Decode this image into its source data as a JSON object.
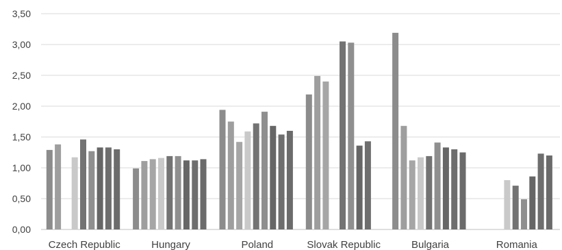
{
  "chart_data": {
    "type": "bar",
    "categories": [
      "Czech Republic",
      "Hungary",
      "Poland",
      "Slovak Republic",
      "Bulgaria",
      "Romania"
    ],
    "series": [
      {
        "values": [
          1.29,
          0.99,
          1.94,
          2.19,
          3.19,
          null
        ]
      },
      {
        "values": [
          1.38,
          1.11,
          1.75,
          2.49,
          1.68,
          null
        ]
      },
      {
        "values": [
          null,
          1.14,
          1.42,
          2.4,
          1.12,
          null
        ]
      },
      {
        "values": [
          1.17,
          1.16,
          1.59,
          null,
          1.17,
          0.8
        ]
      },
      {
        "values": [
          1.46,
          1.19,
          1.72,
          3.05,
          1.19,
          0.71
        ]
      },
      {
        "values": [
          1.27,
          1.19,
          1.91,
          3.03,
          1.41,
          0.49
        ]
      },
      {
        "values": [
          1.33,
          1.12,
          1.68,
          1.36,
          1.33,
          0.86
        ]
      },
      {
        "values": [
          1.33,
          1.12,
          1.54,
          1.43,
          1.3,
          1.23
        ]
      },
      {
        "values": [
          1.3,
          1.14,
          1.6,
          null,
          1.25,
          1.2
        ]
      }
    ],
    "series_colors": [
      "#8c8c8c",
      "#9e9e9e",
      "#a6a6a6",
      "#c9c9c9",
      "#737373",
      "#8f8f8f",
      "#666666",
      "#6e6e6e",
      "#6b6b6b"
    ],
    "yticks": [
      "0,00",
      "0,50",
      "1,00",
      "1,50",
      "2,00",
      "2,50",
      "3,00",
      "3,50"
    ],
    "ylim": [
      0,
      3.5
    ],
    "grid": true,
    "title": "",
    "xlabel": "",
    "ylabel": ""
  }
}
